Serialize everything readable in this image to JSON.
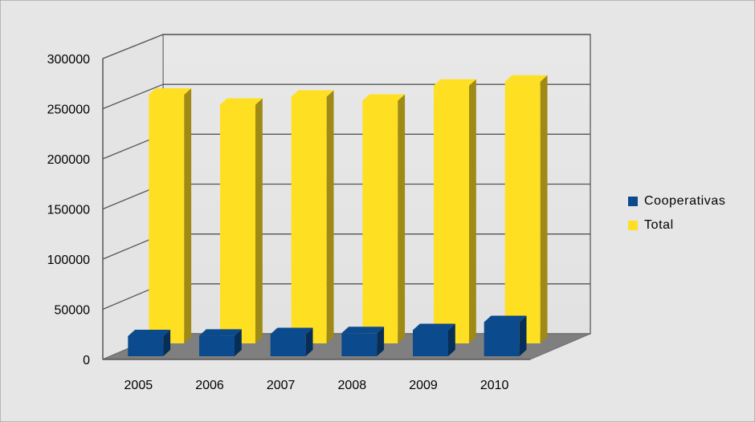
{
  "chart_data": {
    "type": "bar",
    "categories": [
      "2005",
      "2006",
      "2007",
      "2008",
      "2009",
      "2010"
    ],
    "series": [
      {
        "name": "Cooperativas",
        "values": [
          20000,
          20500,
          22000,
          23000,
          26000,
          34000
        ]
      },
      {
        "name": "Total",
        "values": [
          248000,
          238000,
          246000,
          242000,
          257000,
          261000
        ]
      }
    ],
    "y_ticks": [
      "0",
      "50000",
      "100000",
      "150000",
      "200000",
      "250000",
      "300000"
    ],
    "ylim": [
      0,
      300000
    ],
    "title": "",
    "xlabel": "",
    "ylabel": "",
    "legend_position": "right",
    "grid": true,
    "style": "3d-clustered-column",
    "colors": {
      "Cooperativas": "#0B4A8C",
      "Total": "#FFDF22",
      "background": "#E6E6E6",
      "floor": "#7F7F7F"
    }
  }
}
